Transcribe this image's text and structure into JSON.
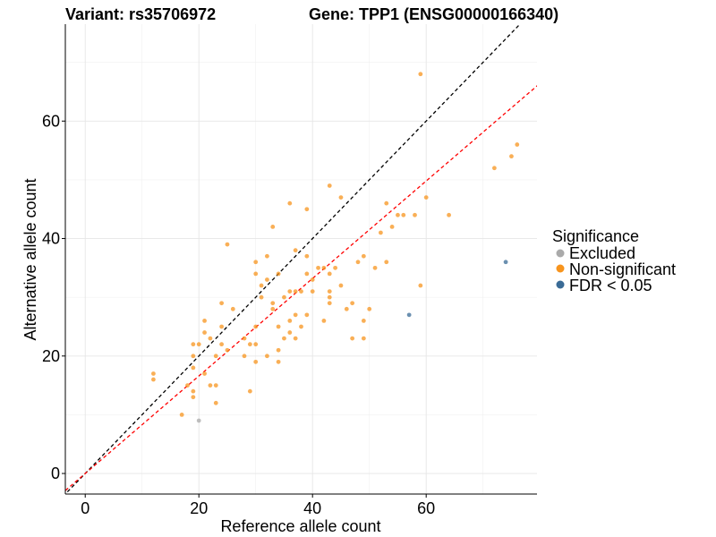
{
  "chart_data": {
    "type": "scatter",
    "title_left": "Variant: rs35706972",
    "title_right": "Gene: TPP1 (ENSG00000166340)",
    "xlabel": "Reference allele count",
    "ylabel": "Alternative allele count",
    "xlim": [
      -3.5,
      79.5
    ],
    "ylim": [
      -3.5,
      76.5
    ],
    "x_ticks": [
      0,
      20,
      40,
      60
    ],
    "y_ticks": [
      0,
      20,
      40,
      60
    ],
    "grid": true,
    "legend": {
      "title": "Significance",
      "position": "right",
      "entries": [
        {
          "key": "excluded",
          "label": "Excluded",
          "color": "#aaaaaa"
        },
        {
          "key": "nonsig",
          "label": "Non-significant",
          "color": "#f7941d"
        },
        {
          "key": "fdr",
          "label": "FDR < 0.05",
          "color": "#3a6b96"
        }
      ]
    },
    "reference_lines": [
      {
        "name": "identity",
        "slope": 1.0,
        "intercept": 0,
        "color": "#000000",
        "dash": true
      },
      {
        "name": "fit",
        "slope": 0.83,
        "intercept": 0,
        "color": "#ff0000",
        "dash": true
      }
    ],
    "series": [
      {
        "key": "excluded",
        "points": [
          [
            20,
            9
          ]
        ]
      },
      {
        "key": "fdr",
        "points": [
          [
            57,
            27
          ],
          [
            74,
            36
          ]
        ]
      },
      {
        "key": "nonsig",
        "points": [
          [
            12,
            17
          ],
          [
            12,
            16
          ],
          [
            17,
            10
          ],
          [
            18,
            15
          ],
          [
            19,
            13
          ],
          [
            19,
            14
          ],
          [
            19,
            18
          ],
          [
            19,
            20
          ],
          [
            19,
            22
          ],
          [
            20,
            22
          ],
          [
            21,
            17
          ],
          [
            21,
            24
          ],
          [
            21,
            26
          ],
          [
            22,
            15
          ],
          [
            22,
            23
          ],
          [
            23,
            12
          ],
          [
            23,
            15
          ],
          [
            23,
            20
          ],
          [
            24,
            22
          ],
          [
            24,
            25
          ],
          [
            24,
            29
          ],
          [
            25,
            39
          ],
          [
            25,
            21
          ],
          [
            26,
            28
          ],
          [
            28,
            20
          ],
          [
            28,
            23
          ],
          [
            29,
            14
          ],
          [
            29,
            22
          ],
          [
            30,
            36
          ],
          [
            30,
            34
          ],
          [
            30,
            25
          ],
          [
            30,
            19
          ],
          [
            30,
            22
          ],
          [
            31,
            30
          ],
          [
            31,
            32
          ],
          [
            32,
            37
          ],
          [
            32,
            33
          ],
          [
            32,
            20
          ],
          [
            33,
            29
          ],
          [
            33,
            42
          ],
          [
            33,
            28
          ],
          [
            34,
            34
          ],
          [
            34,
            25
          ],
          [
            34,
            21
          ],
          [
            34,
            19
          ],
          [
            35,
            30
          ],
          [
            35,
            23
          ],
          [
            36,
            46
          ],
          [
            36,
            31
          ],
          [
            36,
            26
          ],
          [
            36,
            24
          ],
          [
            37,
            38
          ],
          [
            37,
            31
          ],
          [
            37,
            27
          ],
          [
            37,
            23
          ],
          [
            38,
            25
          ],
          [
            38,
            31
          ],
          [
            39,
            45
          ],
          [
            39,
            34
          ],
          [
            39,
            37
          ],
          [
            39,
            27
          ],
          [
            40,
            33
          ],
          [
            40,
            31
          ],
          [
            41,
            35
          ],
          [
            42,
            35
          ],
          [
            42,
            26
          ],
          [
            43,
            49
          ],
          [
            43,
            34
          ],
          [
            43,
            31
          ],
          [
            43,
            30
          ],
          [
            43,
            29
          ],
          [
            44,
            35
          ],
          [
            45,
            47
          ],
          [
            45,
            32
          ],
          [
            46,
            28
          ],
          [
            47,
            29
          ],
          [
            47,
            23
          ],
          [
            48,
            36
          ],
          [
            49,
            37
          ],
          [
            49,
            26
          ],
          [
            49,
            23
          ],
          [
            50,
            28
          ],
          [
            51,
            35
          ],
          [
            52,
            41
          ],
          [
            53,
            46
          ],
          [
            53,
            36
          ],
          [
            54,
            42
          ],
          [
            55,
            44
          ],
          [
            56,
            44
          ],
          [
            58,
            44
          ],
          [
            59,
            68
          ],
          [
            59,
            32
          ],
          [
            60,
            47
          ],
          [
            64,
            44
          ],
          [
            72,
            52
          ],
          [
            75,
            54
          ],
          [
            76,
            56
          ]
        ]
      }
    ]
  }
}
